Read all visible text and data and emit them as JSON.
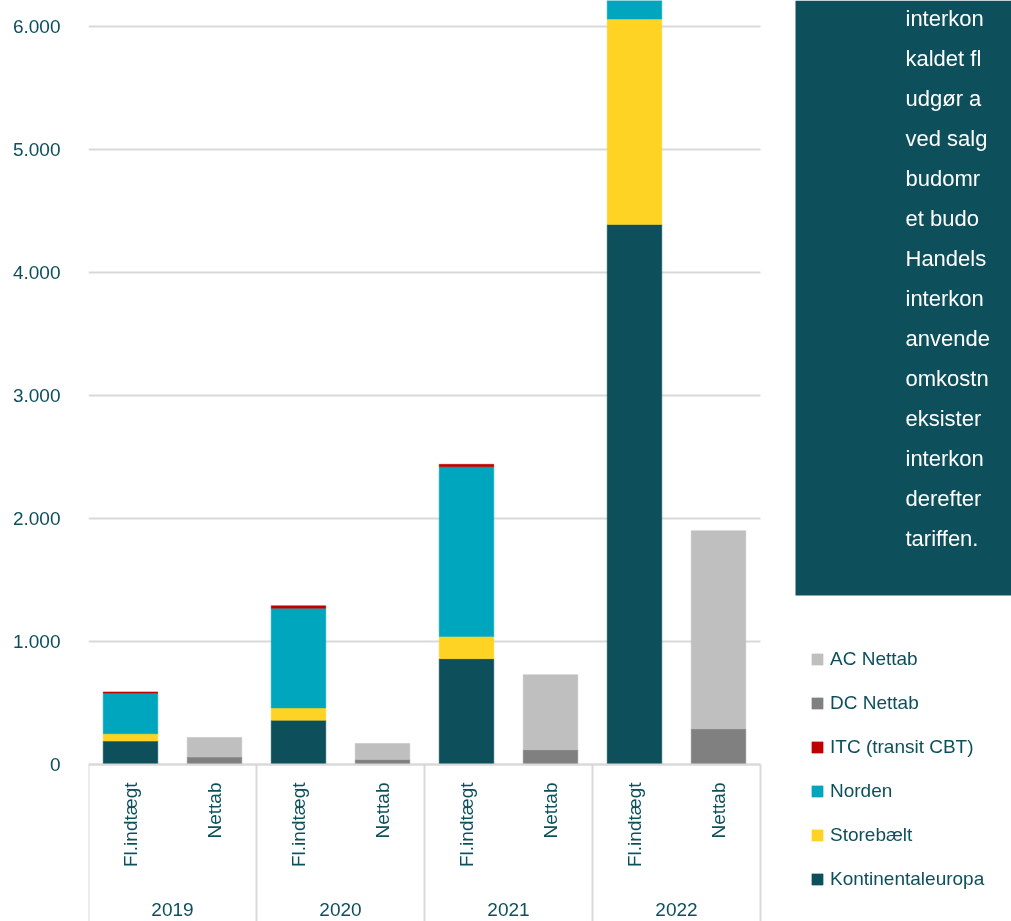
{
  "chart_data": {
    "type": "bar",
    "stacked": true,
    "categories": [
      "Fl.indtægt",
      "Nettab",
      "Fl.indtægt",
      "Nettab",
      "Fl.indtægt",
      "Nettab",
      "Fl.indtægt",
      "Nettab"
    ],
    "series": [
      {
        "name": "Kontinentaleuropa",
        "color": "#0d505c",
        "values": [
          190,
          null,
          360,
          null,
          860,
          null,
          4390,
          null
        ]
      },
      {
        "name": "Storebælt",
        "color": "#ffd324",
        "values": [
          60,
          null,
          100,
          null,
          180,
          null,
          1670,
          null
        ]
      },
      {
        "name": "Norden",
        "color": "#00a6bd",
        "values": [
          330,
          null,
          810,
          null,
          1380,
          null,
          150,
          null
        ]
      },
      {
        "name": "ITC (transit CBT)",
        "color": "#c00000",
        "values": [
          10,
          null,
          20,
          null,
          20,
          null,
          null,
          null
        ]
      },
      {
        "name": "DC Nettab",
        "color": "#808080",
        "values": [
          null,
          60,
          null,
          40,
          null,
          120,
          null,
          290
        ]
      },
      {
        "name": "AC Nettab",
        "color": "#bfbfbf",
        "values": [
          null,
          160,
          null,
          130,
          null,
          610,
          null,
          1610
        ]
      }
    ],
    "ylim": [
      0,
      6210
    ],
    "yticks": [
      0,
      {
        "value": 1000,
        "label": "1.000"
      },
      {
        "value": 2000,
        "label": "2.000"
      },
      {
        "value": 3000,
        "label": "3.000"
      },
      {
        "value": 4000,
        "label": "4.000"
      },
      {
        "value": 5000,
        "label": "5.000"
      },
      {
        "value": 6000,
        "label": "6.000"
      }
    ],
    "grid": "y",
    "legend": "right",
    "annotations": [
      "2019",
      "2020",
      "2021",
      "2022",
      "interkon",
      "kaldet fl",
      "udgør a",
      "ved salg",
      "budomr",
      "et budo",
      "Handels",
      "interkon",
      "anvende",
      "omkostn",
      "eksister",
      "interkon",
      "derefter",
      "tariffen."
    ]
  }
}
